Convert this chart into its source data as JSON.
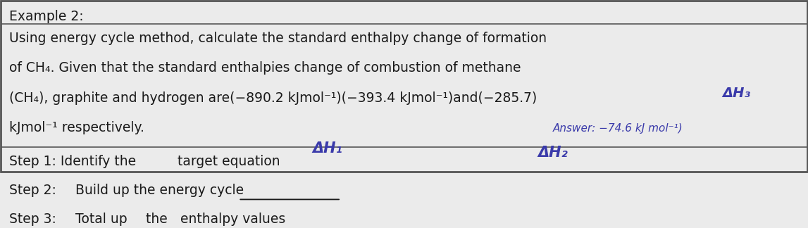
{
  "title": "Example 2:",
  "background_color": "#ebebeb",
  "border_color": "#555555",
  "text_color": "#1a1a1a",
  "handwriting_color": "#3a3aaa",
  "main_text_line1": "Using energy cycle method, calculate the standard enthalpy change of formation",
  "main_text_line2": "of CH₄. Given that the standard enthalpies change of combustion of methane",
  "main_text_line3": "(CH₄), graphite and hydrogen are(−890.2 kJmol⁻¹)(−393.4 kJmol⁻¹)and(−285.7)",
  "main_text_line4": "kJmol⁻¹ respectively.",
  "handwrite_dh1": "ΔH₁",
  "handwrite_dh2": "ΔH₂",
  "handwrite_dh3": "ΔH₃",
  "handwrite_answer": "Answer: −74.6 kJ mol⁻¹)",
  "step1_pre": "Step 1: Identify the ",
  "step1_ul": "target equation",
  "step2_pre": "Step 2: ",
  "step2_ul": "Build up the energy cycle",
  "step3_pre": "Step 3: ",
  "step3_ul1": "Total up",
  "step3_mid": " the ",
  "step3_ul2": "enthalpy values",
  "fontsize_main": 13.5,
  "fontsize_steps": 13.5,
  "fontsize_title": 13.5
}
